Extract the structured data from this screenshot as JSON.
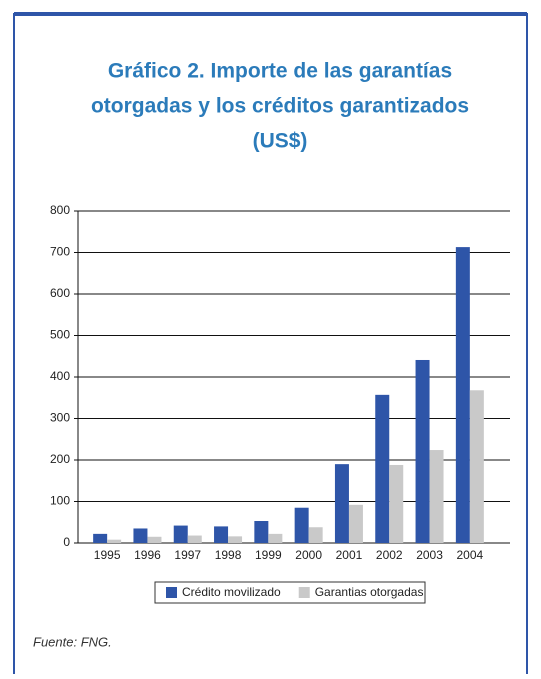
{
  "chart_data": {
    "type": "bar",
    "title": [
      "Gráfico 2. Importe de las garantías",
      "otorgadas y los créditos garantizados",
      "(US$)"
    ],
    "categories": [
      "1995",
      "1996",
      "1997",
      "1998",
      "1999",
      "2000",
      "2001",
      "2002",
      "2003",
      "2004"
    ],
    "series": [
      {
        "name": "Crédito movilizado",
        "color": "#2e55a8",
        "values": [
          22,
          35,
          42,
          40,
          53,
          85,
          190,
          357,
          441,
          713
        ]
      },
      {
        "name": "Garantias otorgadas",
        "color": "#c9c9c9",
        "values": [
          8,
          15,
          18,
          16,
          22,
          38,
          92,
          188,
          224,
          368
        ]
      }
    ],
    "ylim": [
      0,
      800
    ],
    "yticks": [
      0,
      100,
      200,
      300,
      400,
      500,
      600,
      700,
      800
    ],
    "grid": true,
    "legend": "bottom",
    "source": "Fuente: FNG."
  }
}
